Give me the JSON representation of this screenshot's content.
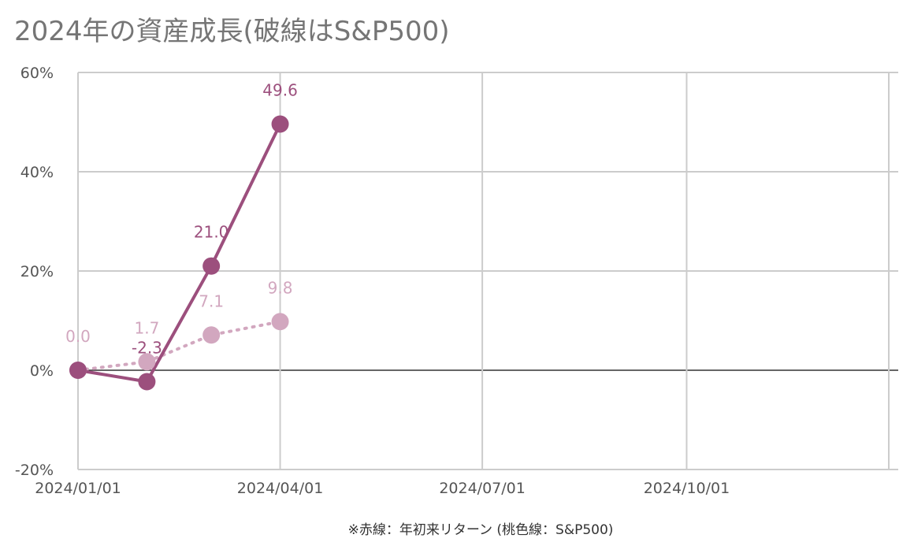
{
  "chart_data": {
    "type": "line",
    "title": "2024年の資産成長(破線はS&P500)",
    "caption": "※赤線：年初来リターン (桃色線：S&P500)",
    "y_ticks": [
      "60%",
      "40%",
      "20%",
      "0%",
      "-20%"
    ],
    "x_ticks": [
      "2024/01/01",
      "2024/04/01",
      "2024/07/01",
      "2024/10/01"
    ],
    "ylim": [
      -20,
      60
    ],
    "xlim": [
      "2024-01-01",
      "2024-12-31"
    ],
    "grid": true,
    "series": [
      {
        "style": "solid",
        "color": "#9c4f7d",
        "points": [
          {
            "x": "2024-01-01",
            "y": 0.0,
            "label": ""
          },
          {
            "x": "2024-02-01",
            "y": -2.3,
            "label": "-2.3"
          },
          {
            "x": "2024-03-01",
            "y": 21.0,
            "label": "21.0"
          },
          {
            "x": "2024-04-01",
            "y": 49.6,
            "label": "49.6"
          }
        ]
      },
      {
        "style": "dotted",
        "color": "#d2a7bf",
        "points": [
          {
            "x": "2024-01-01",
            "y": 0.0,
            "label": "0.0"
          },
          {
            "x": "2024-02-01",
            "y": 1.7,
            "label": "1.7"
          },
          {
            "x": "2024-03-01",
            "y": 7.1,
            "label": "7.1"
          },
          {
            "x": "2024-04-01",
            "y": 9.8,
            "label": "9.8"
          }
        ]
      }
    ]
  }
}
